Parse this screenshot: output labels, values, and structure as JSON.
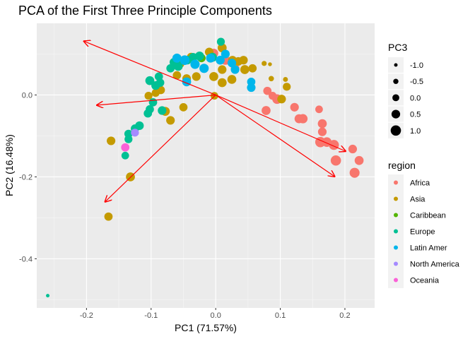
{
  "chart_data": {
    "type": "scatter",
    "title": "PCA of the First Three Principle Components",
    "xlabel": "PC1 (71.57%)",
    "ylabel": "PC2 (16.48%)",
    "xlim": [
      -0.277,
      0.246
    ],
    "ylim": [
      -0.52,
      0.175
    ],
    "x_ticks": [
      -0.2,
      -0.1,
      0.0,
      0.1,
      0.2
    ],
    "x_tick_labels": [
      "-0.2",
      "-0.1",
      "0.0",
      "0.1",
      "0.2"
    ],
    "y_ticks": [
      -0.4,
      -0.2,
      0.0
    ],
    "y_tick_labels": [
      "-0.4",
      "-0.2",
      "0.0"
    ],
    "grid": true,
    "size_legend": {
      "title": "PC3",
      "values": [
        -1.0,
        -0.5,
        0.0,
        0.5,
        1.0
      ],
      "labels": [
        "-1.0",
        "-0.5",
        "0.0",
        "0.5",
        "1.0"
      ]
    },
    "color_legend": {
      "title": "region",
      "entries": [
        {
          "name": "Africa",
          "color": "#F8766D"
        },
        {
          "name": "Asia",
          "color": "#C49A00"
        },
        {
          "name": "Caribbean",
          "color": "#53B400"
        },
        {
          "name": "Europe",
          "color": "#00C094"
        },
        {
          "name": "Latin Amer",
          "color": "#00B6EB"
        },
        {
          "name": "North America",
          "color": "#A58AFF"
        },
        {
          "name": "Oceania",
          "color": "#FB61D7"
        }
      ]
    },
    "loading_arrows": [
      {
        "x": -0.205,
        "y": 0.132
      },
      {
        "x": -0.185,
        "y": -0.025
      },
      {
        "x": -0.172,
        "y": -0.262
      },
      {
        "x": 0.202,
        "y": -0.138
      },
      {
        "x": 0.185,
        "y": -0.2
      }
    ],
    "points": [
      {
        "x": 0.215,
        "y": -0.19,
        "s": 0.9,
        "r": "Africa"
      },
      {
        "x": 0.222,
        "y": -0.16,
        "s": 0.6,
        "r": "Africa"
      },
      {
        "x": 0.212,
        "y": -0.132,
        "s": 0.5,
        "r": "Africa"
      },
      {
        "x": 0.186,
        "y": -0.16,
        "s": 1.0,
        "r": "Africa"
      },
      {
        "x": 0.183,
        "y": -0.122,
        "s": 0.9,
        "r": "Africa"
      },
      {
        "x": 0.172,
        "y": -0.115,
        "s": 0.8,
        "r": "Africa"
      },
      {
        "x": 0.162,
        "y": -0.115,
        "s": 1.0,
        "r": "Africa"
      },
      {
        "x": 0.165,
        "y": -0.09,
        "s": 0.5,
        "r": "Africa"
      },
      {
        "x": 0.165,
        "y": -0.07,
        "s": 0.6,
        "r": "Africa"
      },
      {
        "x": 0.16,
        "y": -0.035,
        "s": 0.2,
        "r": "Africa"
      },
      {
        "x": 0.135,
        "y": -0.058,
        "s": 0.7,
        "r": "Africa"
      },
      {
        "x": 0.129,
        "y": -0.058,
        "s": 0.6,
        "r": "Africa"
      },
      {
        "x": 0.122,
        "y": -0.03,
        "s": 0.5,
        "r": "Africa"
      },
      {
        "x": 0.095,
        "y": -0.01,
        "s": 0.8,
        "r": "Africa"
      },
      {
        "x": 0.078,
        "y": -0.038,
        "s": 0.6,
        "r": "Africa"
      },
      {
        "x": 0.08,
        "y": 0.01,
        "s": 0.4,
        "r": "Africa"
      },
      {
        "x": 0.088,
        "y": -0.002,
        "s": 0.3,
        "r": "Africa"
      },
      {
        "x": 0.015,
        "y": 0.085,
        "s": 0.7,
        "r": "Africa"
      },
      {
        "x": 0.03,
        "y": 0.065,
        "s": 0.5,
        "r": "Africa"
      },
      {
        "x": -0.003,
        "y": 0.102,
        "s": 0.6,
        "r": "Africa"
      },
      {
        "x": -0.002,
        "y": -0.002,
        "s": 0.2,
        "r": "Asia"
      },
      {
        "x": 0.102,
        "y": -0.01,
        "s": 0.5,
        "r": "Asia"
      },
      {
        "x": 0.11,
        "y": 0.02,
        "s": 0.3,
        "r": "Asia"
      },
      {
        "x": 0.108,
        "y": 0.038,
        "s": -0.6,
        "r": "Asia"
      },
      {
        "x": 0.086,
        "y": 0.04,
        "s": -0.45,
        "r": "Asia"
      },
      {
        "x": 0.075,
        "y": 0.077,
        "s": -0.55,
        "r": "Asia"
      },
      {
        "x": 0.084,
        "y": 0.075,
        "s": -0.9,
        "r": "Asia"
      },
      {
        "x": 0.057,
        "y": 0.065,
        "s": 0.4,
        "r": "Asia"
      },
      {
        "x": 0.045,
        "y": 0.062,
        "s": 0.6,
        "r": "Asia"
      },
      {
        "x": 0.043,
        "y": 0.085,
        "s": 0.5,
        "r": "Asia"
      },
      {
        "x": 0.035,
        "y": 0.082,
        "s": 0.5,
        "r": "Asia"
      },
      {
        "x": 0.026,
        "y": 0.085,
        "s": 0.5,
        "r": "Asia"
      },
      {
        "x": 0.01,
        "y": 0.115,
        "s": 0.6,
        "r": "Asia"
      },
      {
        "x": -0.003,
        "y": 0.045,
        "s": 0.6,
        "r": "Asia"
      },
      {
        "x": 0.01,
        "y": 0.062,
        "s": 0.5,
        "r": "Asia"
      },
      {
        "x": 0.01,
        "y": 0.03,
        "s": 0.6,
        "r": "Asia"
      },
      {
        "x": 0.025,
        "y": 0.038,
        "s": 0.6,
        "r": "Asia"
      },
      {
        "x": -0.01,
        "y": 0.105,
        "s": 0.5,
        "r": "Asia"
      },
      {
        "x": -0.038,
        "y": 0.093,
        "s": 0.4,
        "r": "Asia"
      },
      {
        "x": -0.055,
        "y": 0.076,
        "s": 0.4,
        "r": "Asia"
      },
      {
        "x": -0.03,
        "y": 0.045,
        "s": 0.5,
        "r": "Asia"
      },
      {
        "x": -0.045,
        "y": 0.04,
        "s": 0.5,
        "r": "Asia"
      },
      {
        "x": -0.06,
        "y": 0.048,
        "s": 0.4,
        "r": "Asia"
      },
      {
        "x": -0.085,
        "y": 0.012,
        "s": 0.4,
        "r": "Asia"
      },
      {
        "x": -0.093,
        "y": 0.005,
        "s": 0.3,
        "r": "Asia"
      },
      {
        "x": -0.05,
        "y": -0.03,
        "s": 0.4,
        "r": "Asia"
      },
      {
        "x": -0.078,
        "y": -0.04,
        "s": 0.6,
        "r": "Asia"
      },
      {
        "x": -0.07,
        "y": -0.062,
        "s": 0.5,
        "r": "Asia"
      },
      {
        "x": -0.104,
        "y": -0.002,
        "s": 0.3,
        "r": "Asia"
      },
      {
        "x": -0.162,
        "y": -0.112,
        "s": 0.5,
        "r": "Asia"
      },
      {
        "x": -0.132,
        "y": -0.2,
        "s": 0.6,
        "r": "Asia"
      },
      {
        "x": -0.166,
        "y": -0.297,
        "s": 0.4,
        "r": "Asia"
      },
      {
        "x": -0.022,
        "y": 0.09,
        "s": 0.4,
        "r": "Caribbean"
      },
      {
        "x": -0.058,
        "y": 0.08,
        "s": 0.4,
        "r": "Caribbean"
      },
      {
        "x": 0.008,
        "y": 0.13,
        "s": 0.3,
        "r": "Europe"
      },
      {
        "x": -0.005,
        "y": 0.092,
        "s": 0.6,
        "r": "Europe"
      },
      {
        "x": -0.025,
        "y": 0.095,
        "s": 0.6,
        "r": "Europe"
      },
      {
        "x": -0.035,
        "y": 0.092,
        "s": 0.5,
        "r": "Europe"
      },
      {
        "x": -0.044,
        "y": 0.085,
        "s": 0.5,
        "r": "Europe"
      },
      {
        "x": -0.058,
        "y": 0.07,
        "s": 0.6,
        "r": "Europe"
      },
      {
        "x": -0.065,
        "y": 0.08,
        "s": 0.4,
        "r": "Europe"
      },
      {
        "x": -0.07,
        "y": 0.065,
        "s": 0.4,
        "r": "Europe"
      },
      {
        "x": -0.088,
        "y": 0.045,
        "s": 0.4,
        "r": "Europe"
      },
      {
        "x": -0.102,
        "y": 0.035,
        "s": 0.6,
        "r": "Europe"
      },
      {
        "x": -0.093,
        "y": 0.023,
        "s": 0.5,
        "r": "Europe"
      },
      {
        "x": -0.086,
        "y": 0.03,
        "s": 0.4,
        "r": "Europe"
      },
      {
        "x": -0.097,
        "y": -0.018,
        "s": 0.4,
        "r": "Europe"
      },
      {
        "x": -0.102,
        "y": -0.035,
        "s": 0.4,
        "r": "Europe"
      },
      {
        "x": -0.105,
        "y": -0.045,
        "s": 0.4,
        "r": "Europe"
      },
      {
        "x": -0.118,
        "y": -0.075,
        "s": 0.5,
        "r": "Europe"
      },
      {
        "x": -0.125,
        "y": -0.082,
        "s": 0.4,
        "r": "Europe"
      },
      {
        "x": -0.135,
        "y": -0.095,
        "s": 0.4,
        "r": "Europe"
      },
      {
        "x": -0.135,
        "y": -0.108,
        "s": 0.3,
        "r": "Europe"
      },
      {
        "x": -0.14,
        "y": -0.148,
        "s": 0.2,
        "r": "Europe"
      },
      {
        "x": -0.083,
        "y": -0.038,
        "s": 0.5,
        "r": "Europe"
      },
      {
        "x": -0.26,
        "y": -0.49,
        "s": -1.0,
        "r": "Europe"
      },
      {
        "x": -0.06,
        "y": 0.09,
        "s": 0.65,
        "r": "Latin Amer"
      },
      {
        "x": -0.048,
        "y": 0.085,
        "s": 0.8,
        "r": "Latin Amer"
      },
      {
        "x": -0.032,
        "y": 0.075,
        "s": 0.7,
        "r": "Latin Amer"
      },
      {
        "x": -0.018,
        "y": 0.065,
        "s": 0.7,
        "r": "Latin Amer"
      },
      {
        "x": -0.045,
        "y": 0.032,
        "s": 0.6,
        "r": "Latin Amer"
      },
      {
        "x": -0.008,
        "y": 0.09,
        "s": 0.6,
        "r": "Latin Amer"
      },
      {
        "x": 0.007,
        "y": 0.085,
        "s": 0.6,
        "r": "Latin Amer"
      },
      {
        "x": 0.015,
        "y": 0.1,
        "s": 0.5,
        "r": "Latin Amer"
      },
      {
        "x": 0.025,
        "y": 0.078,
        "s": 0.5,
        "r": "Latin Amer"
      },
      {
        "x": 0.03,
        "y": 0.062,
        "s": 0.5,
        "r": "Latin Amer"
      },
      {
        "x": 0.055,
        "y": 0.032,
        "s": 0.4,
        "r": "Latin Amer"
      },
      {
        "x": 0.055,
        "y": 0.018,
        "s": 0.5,
        "r": "Latin Amer"
      },
      {
        "x": -0.125,
        "y": -0.092,
        "s": 0.3,
        "r": "North America"
      },
      {
        "x": -0.14,
        "y": -0.128,
        "s": 0.4,
        "r": "Oceania"
      }
    ]
  }
}
